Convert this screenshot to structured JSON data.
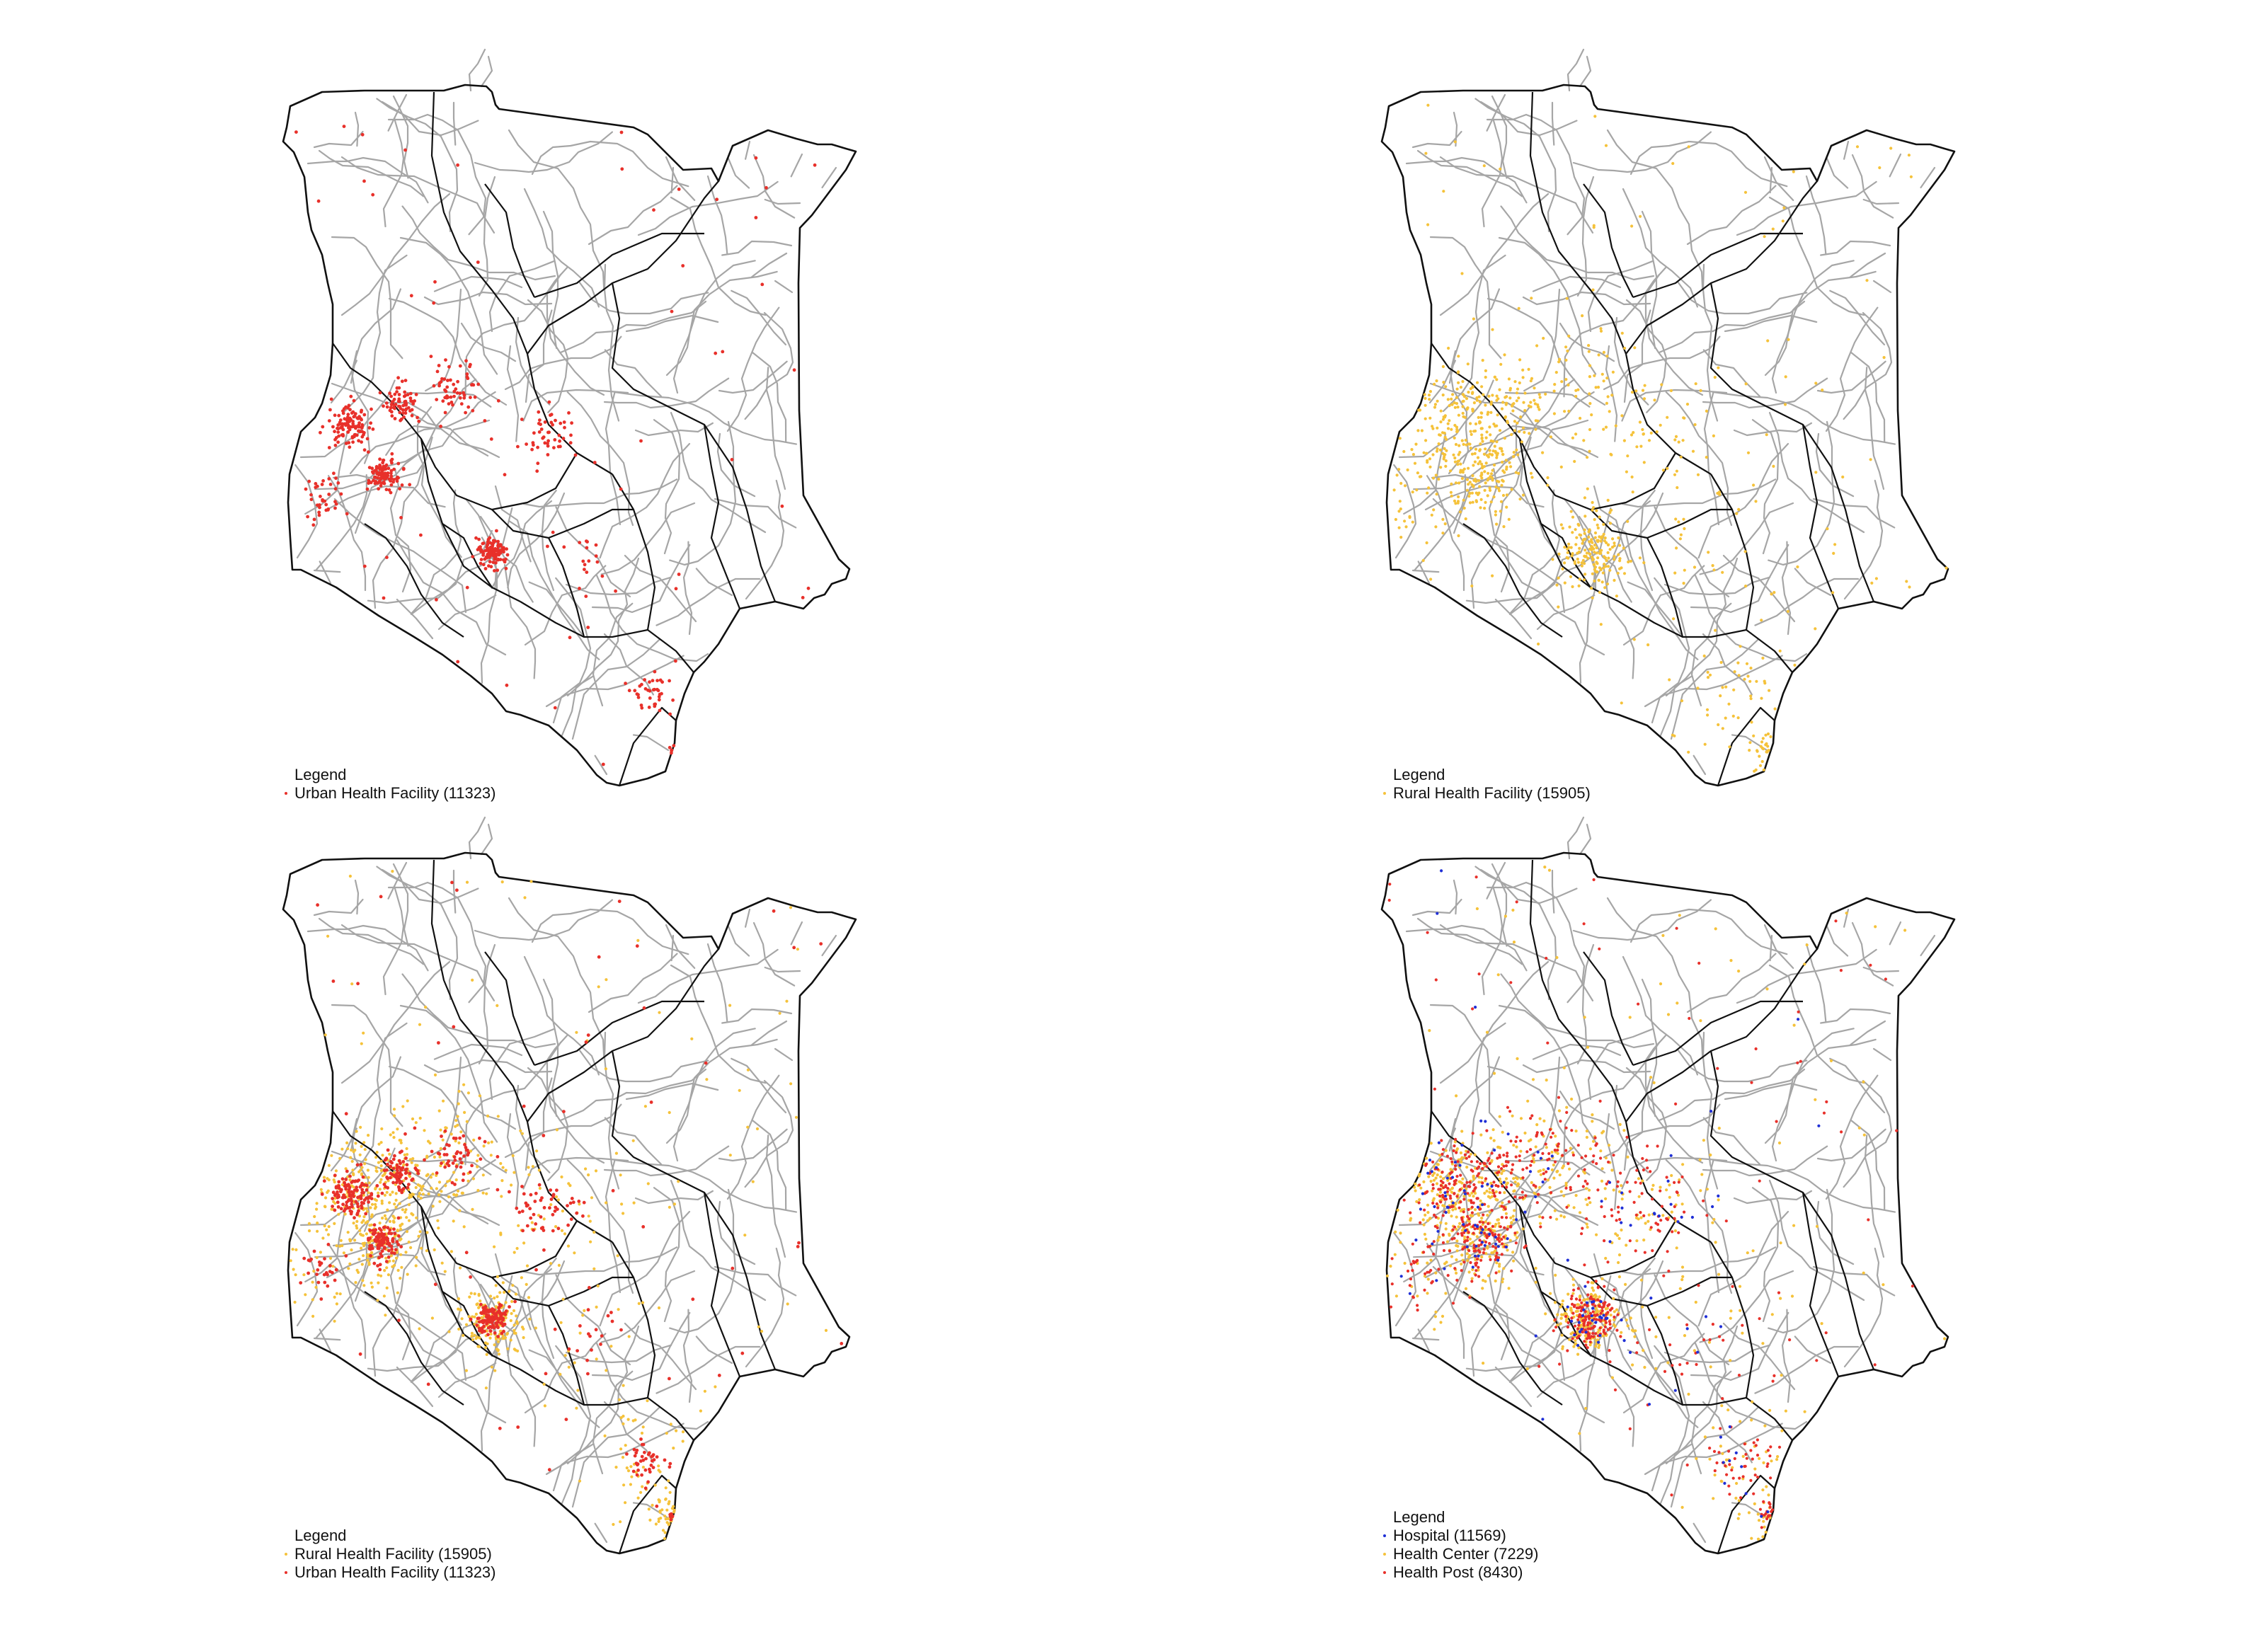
{
  "colors": {
    "urban": "#e8302a",
    "rural": "#f5c23a",
    "hospital": "#1f2fd6",
    "health_center": "#f5c23a",
    "health_post": "#e8302a",
    "roads": "#a6a6a6",
    "boundaries": "#111111"
  },
  "panels": [
    {
      "legend_title": "Legend",
      "items": [
        {
          "label": "Urban Health Facility (11323)",
          "color_key": "urban"
        }
      ],
      "layers": [
        {
          "color_key": "urban",
          "weight": "urban"
        }
      ]
    },
    {
      "legend_title": "Legend",
      "items": [
        {
          "label": "Rural Health Facility (15905)",
          "color_key": "rural"
        }
      ],
      "layers": [
        {
          "color_key": "rural",
          "weight": "rural"
        }
      ]
    },
    {
      "legend_title": "Legend",
      "items": [
        {
          "label": "Rural Health Facility (15905)",
          "color_key": "rural"
        },
        {
          "label": "Urban Health Facility (11323)",
          "color_key": "urban"
        }
      ],
      "layers": [
        {
          "color_key": "rural",
          "weight": "rural"
        },
        {
          "color_key": "urban",
          "weight": "urban"
        }
      ]
    },
    {
      "legend_title": "Legend",
      "items": [
        {
          "label": "Hospital (11569)",
          "color_key": "hospital"
        },
        {
          "label": "Health Center (7229)",
          "color_key": "health_center"
        },
        {
          "label": "Health Post (8430)",
          "color_key": "health_post"
        }
      ],
      "layers": [
        {
          "color_key": "health_center",
          "weight": "rural"
        },
        {
          "color_key": "health_post",
          "weight": "mixed"
        },
        {
          "color_key": "hospital",
          "weight": "sparse"
        }
      ]
    }
  ]
}
